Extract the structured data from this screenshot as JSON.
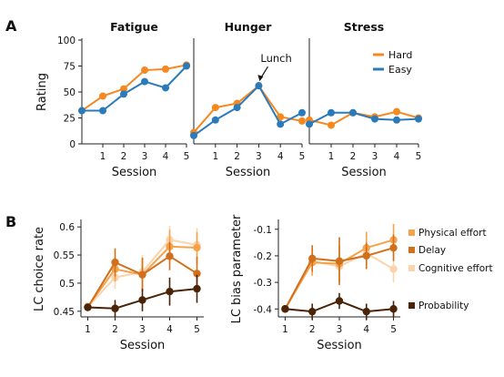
{
  "panel_labels": {
    "a": "A",
    "b": "B"
  },
  "colors": {
    "hard": "#f5881f",
    "easy": "#2b7bba",
    "physical": "#f6a24a",
    "delay": "#d0701c",
    "cognitive": "#fbd3ad",
    "probability": "#4a2408",
    "axis": "#222222"
  },
  "chart_data": [
    {
      "type": "line",
      "title": "Fatigue",
      "xlabel": "Session",
      "ylabel": "Rating",
      "x": [
        0,
        1,
        2,
        3,
        4,
        5
      ],
      "xticks": [
        1,
        2,
        3,
        4,
        5
      ],
      "xlim": [
        0,
        5
      ],
      "ylim": [
        0,
        100
      ],
      "yticks": [
        0,
        25,
        50,
        75,
        100
      ],
      "series": [
        {
          "name": "Hard",
          "values": [
            32,
            46,
            53,
            71,
            72,
            76
          ]
        },
        {
          "name": "Easy",
          "values": [
            32,
            32,
            48,
            60,
            54,
            75
          ]
        }
      ]
    },
    {
      "type": "line",
      "title": "Hunger",
      "xlabel": "Session",
      "x": [
        0,
        1,
        2,
        3,
        4,
        5
      ],
      "xticks": [
        1,
        2,
        3,
        4,
        5
      ],
      "xlim": [
        0,
        5
      ],
      "ylim": [
        0,
        100
      ],
      "annotation": {
        "text": "Lunch",
        "x": 3,
        "y": 56
      },
      "series": [
        {
          "name": "Hard",
          "values": [
            11,
            35,
            39,
            56,
            26,
            22
          ]
        },
        {
          "name": "Easy",
          "values": [
            8,
            23,
            35,
            56,
            19,
            30
          ]
        }
      ]
    },
    {
      "type": "line",
      "title": "Stress",
      "xlabel": "Session",
      "x": [
        0,
        1,
        2,
        3,
        4,
        5
      ],
      "xticks": [
        1,
        2,
        3,
        4,
        5
      ],
      "xlim": [
        0,
        5
      ],
      "ylim": [
        0,
        100
      ],
      "legend": [
        "Hard",
        "Easy"
      ],
      "series": [
        {
          "name": "Hard",
          "values": [
            23,
            18,
            30,
            26,
            31,
            25
          ]
        },
        {
          "name": "Easy",
          "values": [
            19,
            30,
            30,
            24,
            23,
            24
          ]
        }
      ]
    },
    {
      "type": "line",
      "xlabel": "Session",
      "ylabel": "LC choice rate",
      "x": [
        1,
        2,
        3,
        4,
        5
      ],
      "xlim": [
        0.75,
        5.25
      ],
      "ylim": [
        0.44,
        0.61
      ],
      "yticks": [
        0.45,
        0.5,
        0.55,
        0.6
      ],
      "ytick_labels": [
        "0.45",
        "0.5",
        "0.55",
        "0.6"
      ],
      "series": [
        {
          "name": "Cognitive effort",
          "values": [
            0.458,
            0.51,
            0.52,
            0.577,
            0.568
          ],
          "err": [
            0.006,
            0.02,
            0.03,
            0.025,
            0.03
          ]
        },
        {
          "name": "Physical effort",
          "values": [
            0.458,
            0.525,
            0.515,
            0.565,
            0.563
          ],
          "err": [
            0.006,
            0.022,
            0.03,
            0.03,
            0.028
          ]
        },
        {
          "name": "Delay",
          "values": [
            0.457,
            0.537,
            0.515,
            0.548,
            0.517
          ],
          "err": [
            0.006,
            0.025,
            0.03,
            0.025,
            0.03
          ]
        },
        {
          "name": "Probability",
          "values": [
            0.457,
            0.455,
            0.47,
            0.485,
            0.49
          ],
          "err": [
            0.004,
            0.015,
            0.02,
            0.025,
            0.025
          ]
        }
      ]
    },
    {
      "type": "line",
      "xlabel": "Session",
      "ylabel": "LC bias parameter",
      "x": [
        1,
        2,
        3,
        4,
        5
      ],
      "xlim": [
        0.75,
        5.25
      ],
      "ylim": [
        -0.43,
        -0.07
      ],
      "yticks": [
        -0.4,
        -0.3,
        -0.2,
        -0.1
      ],
      "ytick_labels": [
        "-0.4",
        "-0.3",
        "-0.2",
        "-0.1"
      ],
      "legend": [
        "Physical effort",
        "Delay",
        "Cognitive effort",
        "Probability"
      ],
      "series": [
        {
          "name": "Cognitive effort",
          "values": [
            -0.4,
            -0.22,
            -0.24,
            -0.19,
            -0.25
          ],
          "err": [
            0.01,
            0.05,
            0.06,
            0.05,
            0.05
          ]
        },
        {
          "name": "Physical effort",
          "values": [
            -0.4,
            -0.225,
            -0.23,
            -0.17,
            -0.14
          ],
          "err": [
            0.01,
            0.05,
            0.07,
            0.06,
            0.06
          ]
        },
        {
          "name": "Delay",
          "values": [
            -0.4,
            -0.21,
            -0.22,
            -0.2,
            -0.17
          ],
          "err": [
            0.01,
            0.05,
            0.09,
            0.05,
            0.05
          ]
        },
        {
          "name": "Probability",
          "values": [
            -0.4,
            -0.41,
            -0.37,
            -0.41,
            -0.4
          ],
          "err": [
            0.01,
            0.03,
            0.03,
            0.03,
            0.03
          ]
        }
      ]
    }
  ]
}
